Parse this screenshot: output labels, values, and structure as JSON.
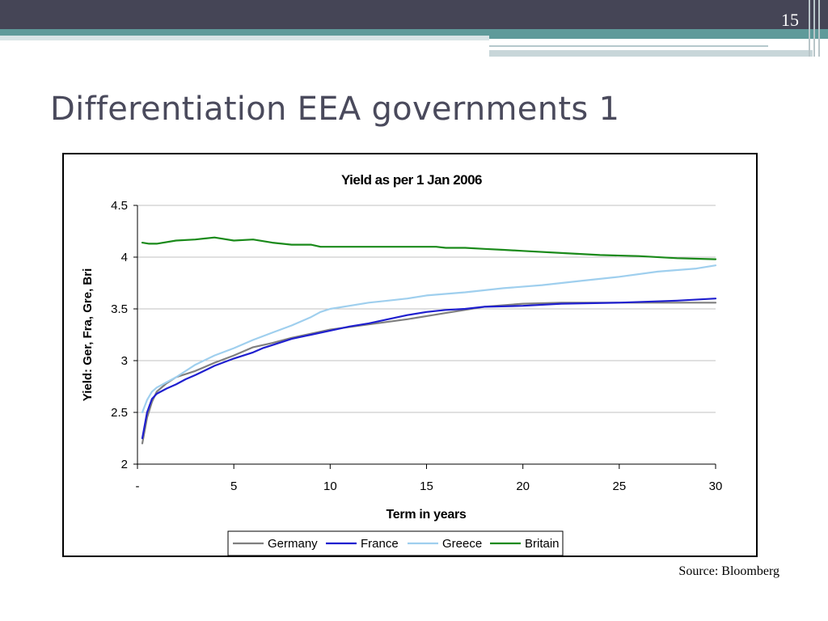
{
  "slide": {
    "number": "15",
    "title": "Differentiation EEA governments 1",
    "source": "Source: Bloomberg"
  },
  "colors": {
    "header_dark": "#454556",
    "header_teal": "#5f9a9a",
    "title_text": "#4a4a5c"
  },
  "chart_data": {
    "type": "line",
    "title": "Yield as per 1 Jan 2006",
    "xlabel": "Term in years",
    "ylabel": "Yield: Ger, Fra, Gre, Bri",
    "xlim": [
      0,
      30
    ],
    "ylim": [
      2,
      4.5
    ],
    "x_ticks": [
      {
        "value": 0,
        "label": "-"
      },
      {
        "value": 5,
        "label": "5"
      },
      {
        "value": 10,
        "label": "10"
      },
      {
        "value": 15,
        "label": "15"
      },
      {
        "value": 20,
        "label": "20"
      },
      {
        "value": 25,
        "label": "25"
      },
      {
        "value": 30,
        "label": "30"
      }
    ],
    "y_ticks": [
      {
        "value": 2,
        "label": "2"
      },
      {
        "value": 2.5,
        "label": "2.5"
      },
      {
        "value": 3,
        "label": "3"
      },
      {
        "value": 3.5,
        "label": "3.5"
      },
      {
        "value": 4,
        "label": "4"
      },
      {
        "value": 4.5,
        "label": "4.5"
      }
    ],
    "grid": true,
    "legend_position": "bottom",
    "series": [
      {
        "name": "Germany",
        "color": "#7f7f7f",
        "points": [
          [
            0.25,
            2.2
          ],
          [
            0.5,
            2.45
          ],
          [
            0.75,
            2.6
          ],
          [
            1,
            2.7
          ],
          [
            1.5,
            2.78
          ],
          [
            2,
            2.84
          ],
          [
            3,
            2.9
          ],
          [
            4,
            2.98
          ],
          [
            5,
            3.05
          ],
          [
            6,
            3.13
          ],
          [
            7,
            3.17
          ],
          [
            8,
            3.22
          ],
          [
            9,
            3.26
          ],
          [
            10,
            3.3
          ],
          [
            12,
            3.35
          ],
          [
            14,
            3.4
          ],
          [
            16,
            3.46
          ],
          [
            18,
            3.52
          ],
          [
            20,
            3.55
          ],
          [
            22,
            3.56
          ],
          [
            25,
            3.56
          ],
          [
            28,
            3.56
          ],
          [
            30,
            3.56
          ]
        ]
      },
      {
        "name": "France",
        "color": "#1f1fcf",
        "points": [
          [
            0.25,
            2.25
          ],
          [
            0.5,
            2.5
          ],
          [
            0.75,
            2.63
          ],
          [
            1,
            2.68
          ],
          [
            1.5,
            2.73
          ],
          [
            2,
            2.77
          ],
          [
            2.5,
            2.82
          ],
          [
            3,
            2.86
          ],
          [
            4,
            2.95
          ],
          [
            5,
            3.02
          ],
          [
            6,
            3.08
          ],
          [
            6.5,
            3.12
          ],
          [
            7,
            3.15
          ],
          [
            8,
            3.21
          ],
          [
            9,
            3.25
          ],
          [
            10,
            3.29
          ],
          [
            11,
            3.33
          ],
          [
            12,
            3.36
          ],
          [
            13,
            3.4
          ],
          [
            14,
            3.44
          ],
          [
            15,
            3.47
          ],
          [
            16,
            3.49
          ],
          [
            17,
            3.5
          ],
          [
            18,
            3.52
          ],
          [
            20,
            3.53
          ],
          [
            22,
            3.55
          ],
          [
            25,
            3.56
          ],
          [
            28,
            3.58
          ],
          [
            30,
            3.6
          ]
        ]
      },
      {
        "name": "Greece",
        "color": "#9fcfee",
        "points": [
          [
            0.25,
            2.5
          ],
          [
            0.5,
            2.62
          ],
          [
            0.75,
            2.7
          ],
          [
            1,
            2.74
          ],
          [
            1.5,
            2.79
          ],
          [
            2,
            2.84
          ],
          [
            2.5,
            2.9
          ],
          [
            3,
            2.96
          ],
          [
            4,
            3.05
          ],
          [
            5,
            3.12
          ],
          [
            6,
            3.2
          ],
          [
            7,
            3.27
          ],
          [
            8,
            3.34
          ],
          [
            9,
            3.42
          ],
          [
            9.5,
            3.47
          ],
          [
            10,
            3.5
          ],
          [
            11,
            3.53
          ],
          [
            12,
            3.56
          ],
          [
            13,
            3.58
          ],
          [
            14,
            3.6
          ],
          [
            15,
            3.63
          ],
          [
            17,
            3.66
          ],
          [
            19,
            3.7
          ],
          [
            21,
            3.73
          ],
          [
            23,
            3.77
          ],
          [
            25,
            3.81
          ],
          [
            27,
            3.86
          ],
          [
            29,
            3.89
          ],
          [
            30,
            3.92
          ]
        ]
      },
      {
        "name": "Britain",
        "color": "#1a8a1a",
        "points": [
          [
            0.25,
            4.14
          ],
          [
            0.6,
            4.13
          ],
          [
            1,
            4.13
          ],
          [
            2,
            4.16
          ],
          [
            3,
            4.17
          ],
          [
            4,
            4.19
          ],
          [
            5,
            4.16
          ],
          [
            6,
            4.17
          ],
          [
            7,
            4.14
          ],
          [
            8,
            4.12
          ],
          [
            9,
            4.12
          ],
          [
            9.5,
            4.1
          ],
          [
            10,
            4.1
          ],
          [
            12,
            4.1
          ],
          [
            14,
            4.1
          ],
          [
            15.5,
            4.1
          ],
          [
            16,
            4.09
          ],
          [
            17,
            4.09
          ],
          [
            18,
            4.08
          ],
          [
            19,
            4.07
          ],
          [
            20,
            4.06
          ],
          [
            22,
            4.04
          ],
          [
            24,
            4.02
          ],
          [
            26,
            4.01
          ],
          [
            28,
            3.99
          ],
          [
            30,
            3.98
          ]
        ]
      }
    ]
  }
}
